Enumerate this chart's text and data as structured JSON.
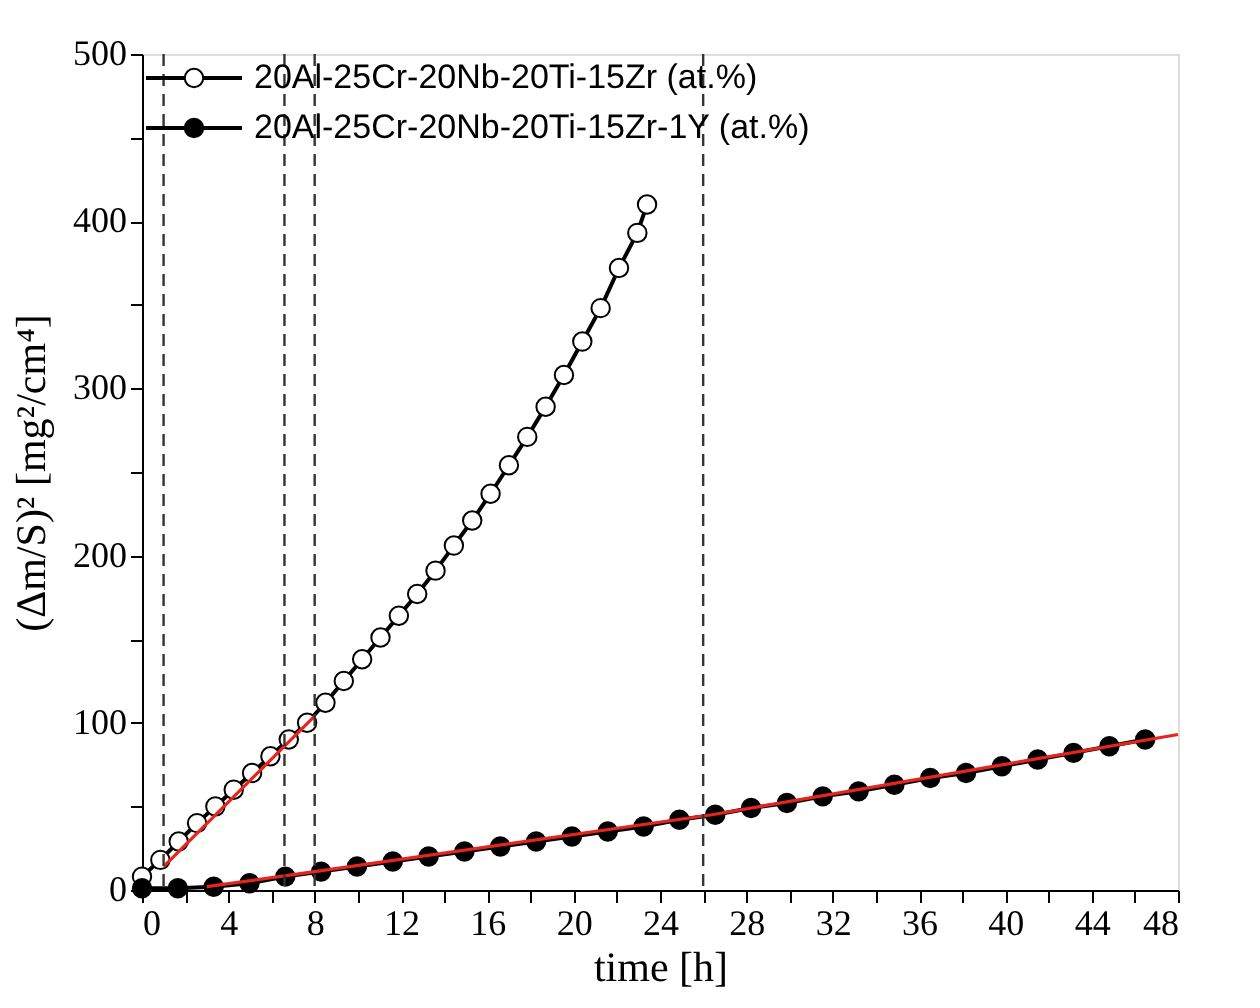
{
  "chart_data": {
    "type": "line",
    "xlabel": "time [h]",
    "ylabel": "(Δm/S)² [mg²/cm⁴]",
    "xlim": [
      0,
      48
    ],
    "ylim": [
      0,
      500
    ],
    "xticks": [
      0,
      {
        "value": 2,
        "label": null
      },
      4,
      {
        "value": 6,
        "label": null
      },
      8,
      {
        "value": 10,
        "label": null
      },
      12,
      {
        "value": 14,
        "label": null
      },
      16,
      {
        "value": 18,
        "label": null
      },
      20,
      {
        "value": 22,
        "label": null
      },
      24,
      {
        "value": 26,
        "label": null
      },
      28,
      {
        "value": 30,
        "label": null
      },
      32,
      {
        "value": 34,
        "label": null
      },
      36,
      {
        "value": 38,
        "label": null
      },
      40,
      {
        "value": 42,
        "label": null
      },
      44,
      {
        "value": 46,
        "label": null
      },
      48
    ],
    "yticks": [
      0,
      {
        "value": 50,
        "label": null
      },
      100,
      {
        "value": 150,
        "label": null
      },
      200,
      {
        "value": 250,
        "label": null
      },
      300,
      {
        "value": 350,
        "label": null
      },
      400,
      {
        "value": 450,
        "label": null
      },
      500
    ],
    "legend": "top left",
    "grid": false,
    "series": [
      {
        "name": "20Al-25Cr-20Nb-20Ti-15Zr (at.%)",
        "color": "#000000",
        "marker": "circle",
        "colors": [
          "#ffffff",
          "#ffffff",
          "#ffffff",
          "#ffffff",
          "#ffffff",
          "#ffffff",
          "#ffffff",
          "#ffffff",
          "#ffffff",
          "#ffffff",
          "#ffffff",
          "#ffffff",
          "#ffffff",
          "#ffffff",
          "#ffffff",
          "#ffffff",
          "#ffffff",
          "#ffffff",
          "#ffffff",
          "#ffffff",
          "#ffffff",
          "#ffffff",
          "#ffffff",
          "#ffffff",
          "#ffffff",
          "#ffffff",
          "#ffffff",
          "#ffffff",
          "#ffffff"
        ],
        "x": [
          0,
          0.85,
          1.7,
          2.55,
          3.4,
          4.25,
          5.1,
          5.95,
          6.8,
          7.65,
          8.5,
          9.35,
          10.2,
          11.05,
          11.9,
          12.75,
          13.6,
          14.45,
          15.3,
          16.15,
          17.0,
          17.85,
          18.7,
          19.55,
          20.4,
          21.25,
          22.1,
          22.95,
          23.4
        ],
        "values": [
          8,
          18,
          29,
          40,
          50,
          60,
          70,
          80,
          90,
          100,
          112,
          125,
          138,
          151,
          164,
          177,
          191,
          206,
          221,
          237,
          254,
          271,
          289,
          308,
          328,
          348,
          372,
          393,
          410
        ]
      },
      {
        "name": "20Al-25Cr-20Nb-20Ti-15Zr-1Y (at.%)",
        "color": "#000000",
        "marker": "circle",
        "x": [
          0,
          1.66,
          3.32,
          4.98,
          6.64,
          8.3,
          9.96,
          11.62,
          13.28,
          14.94,
          16.6,
          18.26,
          19.92,
          21.58,
          23.24,
          24.9,
          26.56,
          28.22,
          29.88,
          31.54,
          33.2,
          34.86,
          36.52,
          38.18,
          39.84,
          41.5,
          43.16,
          44.82,
          46.48
        ],
        "values": [
          1,
          1,
          2,
          4,
          8,
          11,
          14,
          17,
          20,
          23,
          26,
          29,
          32,
          35,
          38,
          42,
          45,
          49,
          52,
          56,
          59,
          63,
          67,
          70,
          74,
          78,
          82,
          86,
          90
        ]
      },
      {
        "type": "line",
        "color": "#e8241f",
        "marker": "none",
        "x": [
          1,
          8
        ],
        "values": [
          14,
          104
        ]
      },
      {
        "type": "line",
        "color": "#e8241f",
        "marker": "none",
        "x": [
          3,
          8,
          26.4,
          48
        ],
        "values": [
          2,
          11,
          45,
          93
        ]
      }
    ],
    "ref_lines": [
      {
        "axis": "x",
        "value": 1,
        "line_style": "dashed",
        "color": "#333333"
      },
      {
        "axis": "x",
        "value": 6.6,
        "line_style": "dashed",
        "color": "#333333"
      },
      {
        "axis": "x",
        "value": 8,
        "line_style": "dashed",
        "color": "#333333"
      },
      {
        "axis": "x",
        "value": 26,
        "line_style": "dashed",
        "color": "#333333"
      }
    ]
  }
}
